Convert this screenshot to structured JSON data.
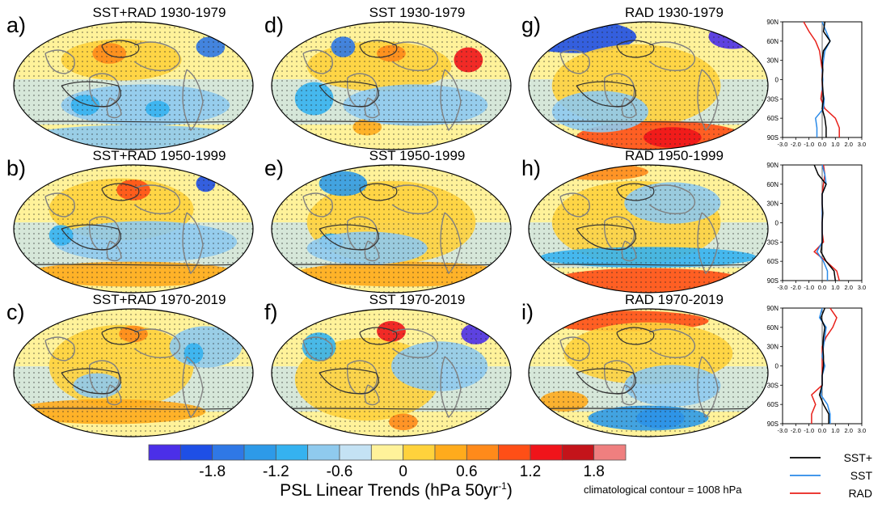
{
  "panels": [
    {
      "id": "a",
      "label": "a)",
      "title": "SST+RAD 1930-1979",
      "col": 0,
      "row": 0
    },
    {
      "id": "d",
      "label": "d)",
      "title": "SST 1930-1979",
      "col": 1,
      "row": 0
    },
    {
      "id": "g",
      "label": "g)",
      "title": "RAD 1930-1979",
      "col": 2,
      "row": 0
    },
    {
      "id": "b",
      "label": "b)",
      "title": "SST+RAD 1950-1999",
      "col": 0,
      "row": 1
    },
    {
      "id": "e",
      "label": "e)",
      "title": "SST 1950-1999",
      "col": 1,
      "row": 1
    },
    {
      "id": "h",
      "label": "h)",
      "title": "RAD 1950-1999",
      "col": 2,
      "row": 1
    },
    {
      "id": "c",
      "label": "c)",
      "title": "SST+RAD 1970-2019",
      "col": 0,
      "row": 2
    },
    {
      "id": "f",
      "label": "f)",
      "title": "SST 1970-2019",
      "col": 1,
      "row": 2
    },
    {
      "id": "i",
      "label": "i)",
      "title": "RAD 1970-2019",
      "col": 2,
      "row": 2
    }
  ],
  "colorbar": {
    "colors": [
      "#4b2fe8",
      "#1e4fe6",
      "#2f78e6",
      "#2d9ae8",
      "#35b2f0",
      "#8fcaee",
      "#c4e2f4",
      "#fff29a",
      "#ffd23c",
      "#ffab1c",
      "#ff8a1a",
      "#ff4f16",
      "#f0141a",
      "#c4141a",
      "#ef7f7f"
    ],
    "tick_labels": [
      "-1.8",
      "-1.2",
      "-0.6",
      "0",
      "0.6",
      "1.2",
      "1.8"
    ],
    "label_main": "PSL Linear Trends (hPa 50yr",
    "label_sup": "-1",
    "label_end": ")"
  },
  "contour_note": "climatological contour = 1008 hPa",
  "profiles": {
    "y_labels": [
      "90N",
      "60N",
      "30N",
      "0",
      "30S",
      "60S",
      "90S"
    ],
    "x_labels": [
      "-3.0",
      "-2.0",
      "-1.0",
      "0.0",
      "1.0",
      "2.0",
      "3.0"
    ],
    "x_range": [
      -3,
      3
    ],
    "lat": [
      90,
      75,
      60,
      45,
      30,
      15,
      0,
      -15,
      -30,
      -45,
      -60,
      -75,
      -90
    ],
    "rows": [
      {
        "SST+": [
          0.2,
          0.1,
          0.6,
          0.1,
          0.0,
          0.05,
          0.0,
          0.05,
          0.1,
          0.0,
          0.2,
          0.3,
          0.3
        ],
        "SST": [
          0.0,
          0.3,
          0.6,
          0.2,
          0.1,
          0.0,
          0.05,
          0.0,
          0.15,
          0.1,
          -0.5,
          -0.4,
          -0.4
        ],
        "RAD": [
          -1.4,
          -1.0,
          -0.5,
          -0.2,
          -0.1,
          0.0,
          0.0,
          0.0,
          -0.1,
          0.2,
          1.0,
          1.3,
          1.3
        ]
      },
      {
        "SST+": [
          -0.6,
          -0.3,
          0.3,
          0.0,
          0.0,
          0.05,
          0.0,
          0.0,
          0.0,
          -0.1,
          0.3,
          0.9,
          1.0
        ],
        "SST": [
          0.0,
          0.2,
          0.3,
          0.0,
          0.0,
          0.0,
          0.0,
          0.0,
          0.0,
          -0.4,
          0.1,
          0.4,
          0.4
        ],
        "RAD": [
          0.1,
          0.2,
          0.1,
          0.0,
          0.0,
          0.0,
          0.0,
          0.0,
          0.1,
          -0.6,
          0.3,
          1.1,
          1.3
        ]
      },
      {
        "SST+": [
          0.2,
          -0.1,
          0.2,
          0.1,
          0.05,
          0.1,
          0.1,
          0.0,
          0.0,
          -0.2,
          0.1,
          0.5,
          0.5
        ],
        "SST": [
          0.0,
          -0.2,
          0.3,
          0.2,
          0.1,
          0.0,
          0.2,
          0.0,
          0.0,
          -0.1,
          0.4,
          0.6,
          0.6
        ],
        "RAD": [
          0.6,
          1.1,
          0.8,
          0.3,
          0.0,
          0.0,
          0.0,
          0.0,
          0.0,
          -0.8,
          -0.5,
          -0.8,
          -0.8
        ]
      }
    ]
  },
  "legend": [
    {
      "name": "SST+",
      "color": "#000000"
    },
    {
      "name": "SST",
      "color": "#2a8ae8"
    },
    {
      "name": "RAD",
      "color": "#e8201a"
    }
  ]
}
